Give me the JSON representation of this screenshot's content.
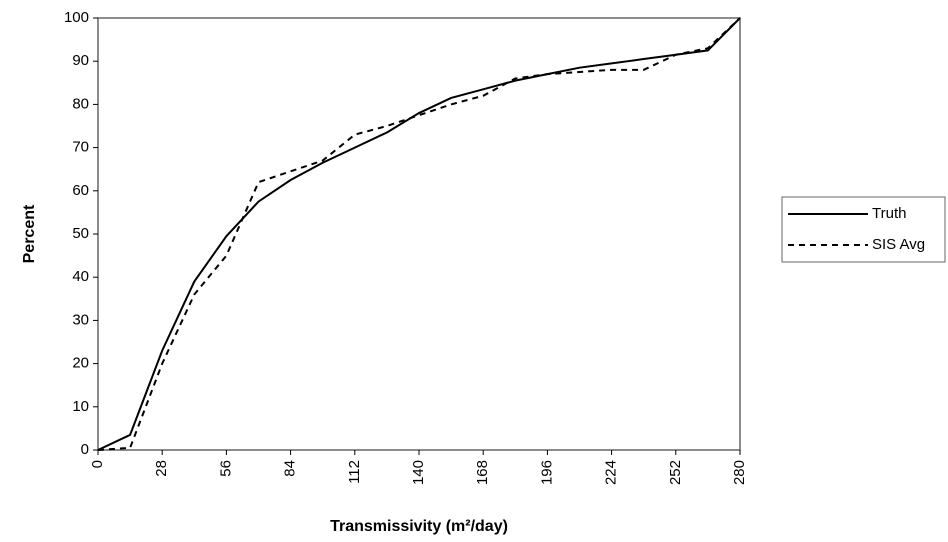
{
  "chart_data": {
    "type": "line",
    "x_label": "Transmissivity (m²/day)",
    "y_label": "Percent",
    "x": [
      0,
      14,
      28,
      42,
      56,
      70,
      84,
      98,
      112,
      126,
      140,
      154,
      168,
      182,
      196,
      210,
      224,
      238,
      252,
      266,
      280
    ],
    "series": [
      {
        "name": "Truth",
        "color": "#000000",
        "style": "solid",
        "values": [
          0,
          3.5,
          23,
          39,
          49.5,
          57.5,
          62.5,
          66.5,
          70,
          73.5,
          78,
          81.5,
          83.5,
          85.5,
          87,
          88.5,
          89.5,
          90.5,
          91.5,
          92.5,
          100
        ]
      },
      {
        "name": "SIS Avg",
        "color": "#000000",
        "style": "dashed",
        "values": [
          0,
          0.5,
          20,
          36,
          45,
          62,
          64.5,
          67,
          73,
          75,
          77.5,
          80,
          82,
          86,
          87,
          87.5,
          88,
          88,
          91.5,
          93,
          100
        ]
      }
    ],
    "xlim": [
      0,
      280
    ],
    "xticks": [
      0,
      28,
      56,
      84,
      112,
      140,
      168,
      196,
      224,
      252,
      280
    ],
    "ylim": [
      0,
      100
    ],
    "yticks": [
      0,
      10,
      20,
      30,
      40,
      50,
      60,
      70,
      80,
      90,
      100
    ],
    "grid": false,
    "legend": "right"
  }
}
